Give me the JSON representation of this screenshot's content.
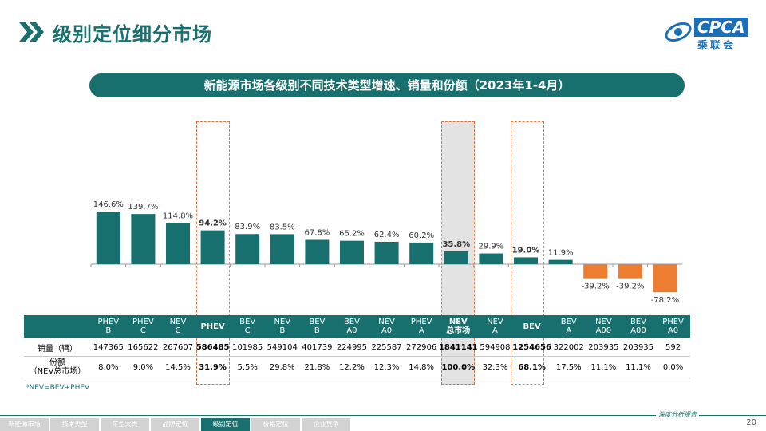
{
  "page_title": "级别定位细分市场",
  "logo": {
    "text": "CPCA",
    "sub": "乘联会"
  },
  "banner": "新能源市场各级别不同技术类型增速、销量和份额（2023年1-4月）",
  "chart_data": {
    "type": "bar",
    "categories": [
      "PHEV B",
      "PHEV C",
      "NEV C",
      "PHEV",
      "BEV C",
      "NEV B",
      "BEV B",
      "BEV A0",
      "NEV A0",
      "PHEV A",
      "NEV 总市场",
      "NEV A",
      "BEV",
      "BEV A",
      "NEV A00",
      "BEV A00",
      "PHEV A0"
    ],
    "values": [
      146.6,
      139.7,
      114.8,
      94.2,
      83.9,
      83.5,
      67.8,
      65.2,
      62.4,
      60.2,
      35.8,
      29.9,
      19.0,
      11.9,
      -39.2,
      -39.2,
      -78.2
    ],
    "value_labels": [
      "146.6%",
      "139.7%",
      "114.8%",
      "94.2%",
      "83.9%",
      "83.5%",
      "67.8%",
      "65.2%",
      "62.4%",
      "60.2%",
      "35.8%",
      "29.9%",
      "19.0%",
      "11.9%",
      "-39.2%",
      "-39.2%",
      "-78.2%"
    ],
    "bold_labels": [
      3,
      10,
      12
    ],
    "colors": {
      "positive": "#17706d",
      "negative": "#ed7d31"
    },
    "title": "",
    "xlabel": "",
    "ylabel": ""
  },
  "table": {
    "headers": [
      [
        "PHEV",
        "B"
      ],
      [
        "PHEV",
        "C"
      ],
      [
        "NEV",
        "C"
      ],
      [
        "PHEV",
        ""
      ],
      [
        "BEV",
        "C"
      ],
      [
        "NEV",
        "B"
      ],
      [
        "BEV",
        "B"
      ],
      [
        "BEV",
        "A0"
      ],
      [
        "NEV",
        "A0"
      ],
      [
        "PHEV",
        "A"
      ],
      [
        "NEV",
        "总市场"
      ],
      [
        "NEV",
        "A"
      ],
      [
        "BEV",
        ""
      ],
      [
        "BEV",
        "A"
      ],
      [
        "NEV",
        "A00"
      ],
      [
        "BEV",
        "A00"
      ],
      [
        "PHEV",
        "A0"
      ]
    ],
    "row1_label": "销量（辆）",
    "row1": [
      "147365",
      "165622",
      "267607",
      "586485",
      "101985",
      "549104",
      "401739",
      "224995",
      "225587",
      "272906",
      "1841141",
      "594908",
      "1254656",
      "322002",
      "203935",
      "203935",
      "592"
    ],
    "row2_label_a": "份额",
    "row2_label_b": "（NEV总市场）",
    "row2": [
      "8.0%",
      "9.0%",
      "14.5%",
      "31.9%",
      "5.5%",
      "29.8%",
      "21.8%",
      "12.2%",
      "12.3%",
      "14.8%",
      "100.0%",
      "32.3%",
      "68.1%",
      "17.5%",
      "11.1%",
      "11.1%",
      "0.0%"
    ]
  },
  "footnote": "*NEV=BEV+PHEV",
  "tabs": [
    "新能源市场",
    "技术类型",
    "车型大类",
    "品牌定位",
    "级别定位",
    "价格定位",
    "企业竞争"
  ],
  "active_tab": 4,
  "tagline": "深度分析报告",
  "page_number": "20"
}
